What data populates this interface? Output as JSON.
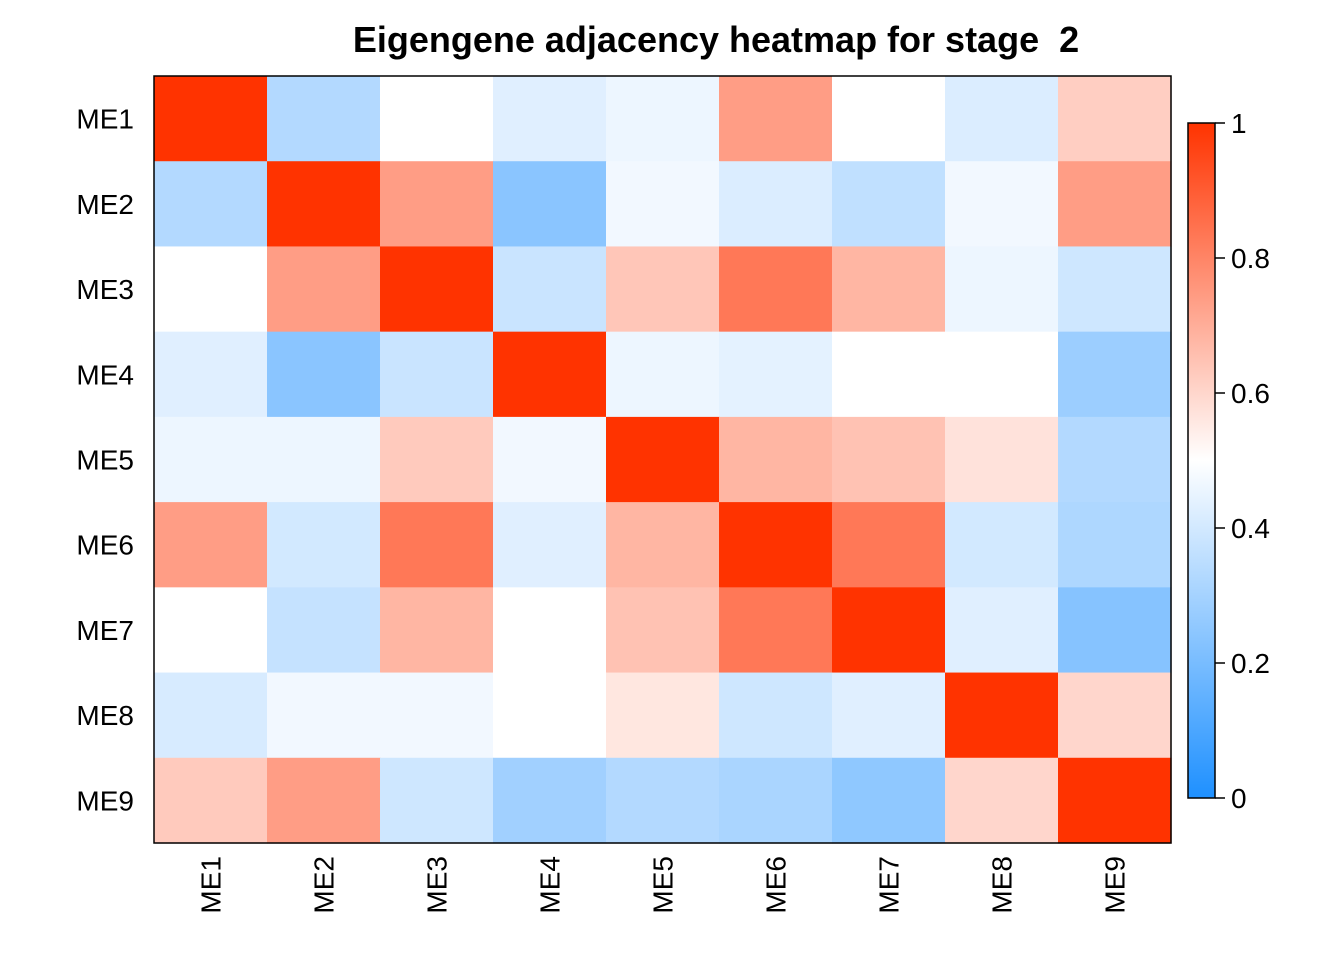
{
  "chart_data": {
    "type": "heatmap",
    "title": "Eigengene adjacency heatmap for stage  2",
    "row_labels": [
      "ME1",
      "ME2",
      "ME3",
      "ME4",
      "ME5",
      "ME6",
      "ME7",
      "ME8",
      "ME9"
    ],
    "col_labels": [
      "ME1",
      "ME2",
      "ME3",
      "ME4",
      "ME5",
      "ME6",
      "ME7",
      "ME8",
      "ME9"
    ],
    "values": [
      [
        1.0,
        0.33,
        0.5,
        0.43,
        0.46,
        0.74,
        0.5,
        0.42,
        0.62
      ],
      [
        0.33,
        1.0,
        0.74,
        0.24,
        0.47,
        0.42,
        0.36,
        0.47,
        0.74
      ],
      [
        0.5,
        0.74,
        1.0,
        0.38,
        0.64,
        0.83,
        0.68,
        0.46,
        0.39
      ],
      [
        0.43,
        0.24,
        0.38,
        1.0,
        0.46,
        0.44,
        0.5,
        0.5,
        0.28
      ],
      [
        0.46,
        0.46,
        0.63,
        0.47,
        1.0,
        0.68,
        0.65,
        0.57,
        0.33
      ],
      [
        0.74,
        0.4,
        0.83,
        0.43,
        0.68,
        1.0,
        0.83,
        0.4,
        0.32
      ],
      [
        0.5,
        0.37,
        0.68,
        0.5,
        0.65,
        0.83,
        1.0,
        0.43,
        0.23
      ],
      [
        0.41,
        0.47,
        0.47,
        0.5,
        0.56,
        0.39,
        0.43,
        1.0,
        0.6
      ],
      [
        0.63,
        0.74,
        0.39,
        0.29,
        0.33,
        0.31,
        0.25,
        0.6,
        1.0
      ]
    ],
    "colorbar": {
      "min": 0,
      "max": 1,
      "ticks": [
        "0",
        "0.2",
        "0.4",
        "0.6",
        "0.8",
        "1"
      ],
      "low_color": "#1e90ff",
      "mid_color": "#ffffff",
      "high_color": "#ff3300"
    }
  }
}
